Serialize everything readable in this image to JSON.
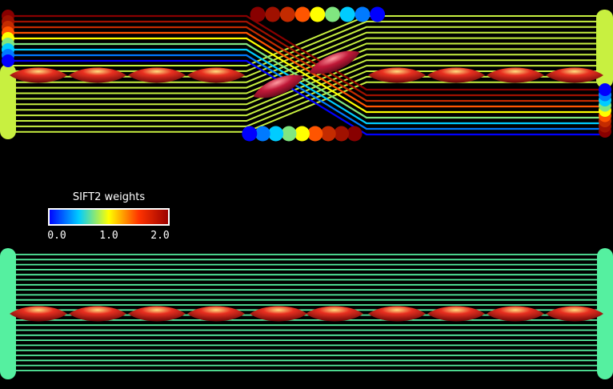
{
  "colorbar": {
    "title": "SIFT2 weights",
    "tick_labels": [
      "0.0",
      "1.0",
      "2.0"
    ],
    "range": [
      0,
      2
    ],
    "stops": [
      "#0000ff",
      "#00ccff",
      "#ffff00",
      "#ff3300",
      "#990000"
    ]
  },
  "colormap": {
    "weight_0_0": "#0000ff",
    "weight_0_5": "#00ccff",
    "weight_1_0": "#ffff00",
    "weight_1_5": "#ff5500",
    "weight_2_0": "#880000"
  },
  "top_panel": {
    "bundle_color": "#c8f040",
    "bundle_weight": 1.05,
    "shifted_streamline_weights": [
      2.0,
      1.9,
      1.75,
      1.5,
      1.0,
      0.75,
      0.5,
      0.3,
      0.0
    ],
    "fixel_orientations": [
      "horizontal",
      "horizontal",
      "horizontal",
      "horizontal",
      "oblique",
      "oblique",
      "horizontal",
      "horizontal",
      "horizontal",
      "horizontal"
    ]
  },
  "bottom_panel": {
    "bundle_color": "#55f0a0",
    "bundle_weight": 0.65,
    "fixel_orientations": [
      "horizontal",
      "horizontal",
      "horizontal",
      "horizontal",
      "horizontal",
      "horizontal",
      "horizontal",
      "horizontal",
      "horizontal",
      "horizontal"
    ]
  },
  "fixel_color": "#d42020"
}
